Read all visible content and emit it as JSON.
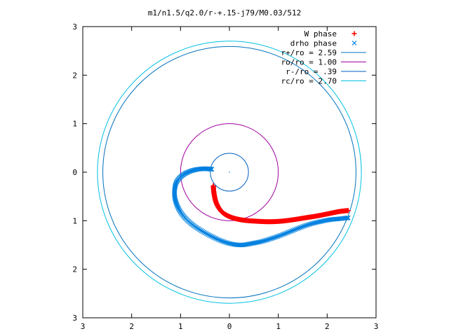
{
  "chart_data": {
    "type": "scatter",
    "title": "m1/n1.5/q2.0/r-+.15-j79/M0.03/512",
    "xlim": [
      -3,
      3
    ],
    "ylim": [
      -3,
      3
    ],
    "x_tick_labels": [
      "3",
      "2",
      "1",
      "0",
      "1",
      "2",
      "3"
    ],
    "y_tick_labels": [
      "3",
      "2",
      "1",
      "0",
      "1",
      "2",
      "3"
    ],
    "x_tick_values": [
      -3,
      -2,
      -1,
      0,
      1,
      2,
      3
    ],
    "y_tick_values": [
      3,
      2,
      1,
      0,
      -1,
      -2,
      -3
    ],
    "grid": false,
    "legend_position": "top-right",
    "series": [
      {
        "name": "W phase",
        "type": "scatter",
        "marker": "+",
        "color": "#ff0000",
        "x": [
          -0.33,
          -0.32,
          -0.3,
          -0.27,
          -0.22,
          -0.15,
          -0.05,
          0.1,
          0.3,
          0.55,
          0.8,
          1.05,
          1.3,
          1.55,
          1.8,
          2.05,
          2.25,
          2.43
        ],
        "y": [
          -0.28,
          -0.4,
          -0.52,
          -0.63,
          -0.73,
          -0.82,
          -0.89,
          -0.95,
          -0.99,
          -1.01,
          -1.02,
          -1.01,
          -0.98,
          -0.94,
          -0.9,
          -0.85,
          -0.81,
          -0.79
        ]
      },
      {
        "name": "drho phase",
        "type": "scatter",
        "marker": "x",
        "color": "#0080e0",
        "x": [
          -0.36,
          -0.45,
          -0.55,
          -0.7,
          -0.85,
          -0.98,
          -1.08,
          -1.12,
          -1.12,
          -1.08,
          -1.0,
          -0.88,
          -0.73,
          -0.55,
          -0.35,
          -0.15,
          0.05,
          0.25,
          0.45,
          0.65,
          0.85,
          1.05,
          1.25,
          1.45,
          1.65,
          1.85,
          2.05,
          2.25,
          2.43
        ],
        "y": [
          0.06,
          0.07,
          0.07,
          0.05,
          0.0,
          -0.08,
          -0.2,
          -0.35,
          -0.5,
          -0.66,
          -0.82,
          -0.97,
          -1.1,
          -1.22,
          -1.33,
          -1.42,
          -1.48,
          -1.5,
          -1.47,
          -1.43,
          -1.37,
          -1.3,
          -1.22,
          -1.14,
          -1.07,
          -1.02,
          -0.98,
          -0.96,
          -0.94
        ]
      },
      {
        "name": "r+/ro = 2.59",
        "type": "circle",
        "radius": 2.59,
        "color": "#0072bd"
      },
      {
        "name": "ro/ro = 1.00",
        "type": "circle",
        "radius": 1.0,
        "color": "#a000a0"
      },
      {
        "name": "r-/ro = .39",
        "type": "circle",
        "radius": 0.39,
        "color": "#0060c0"
      },
      {
        "name": "rc/ro = 2.70",
        "type": "circle",
        "radius": 2.7,
        "color": "#00c0e0"
      }
    ]
  }
}
